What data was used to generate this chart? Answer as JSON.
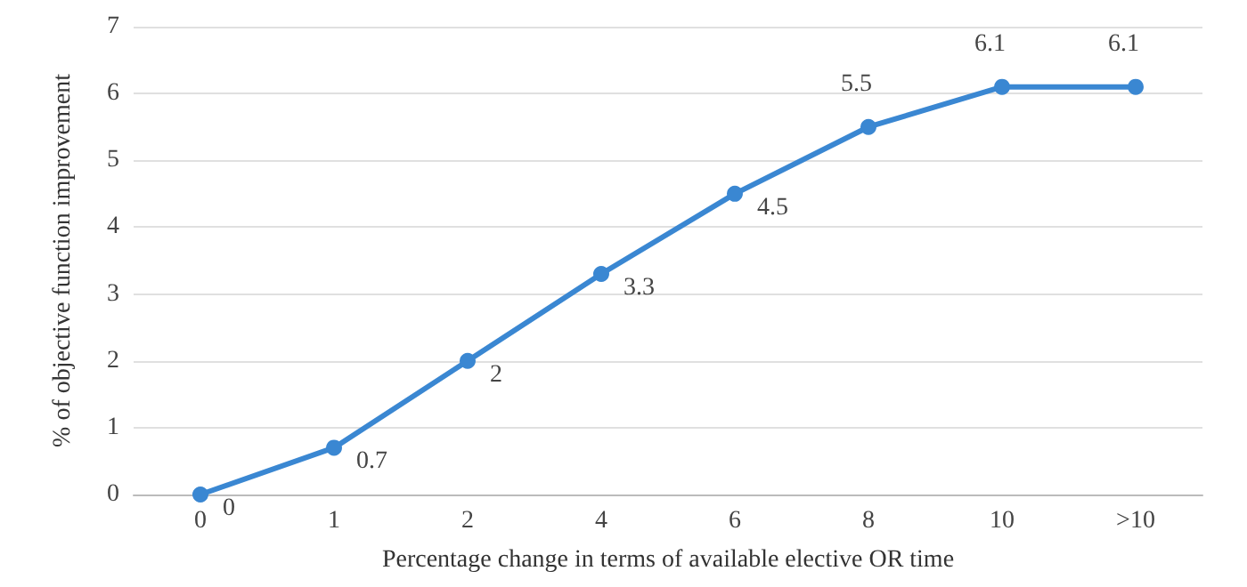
{
  "chart_data": {
    "type": "line",
    "xlabel": "Percentage change in terms of available elective OR time",
    "ylabel": "% of objective function improvement",
    "categories": [
      "0",
      "1",
      "2",
      "4",
      "6",
      "8",
      "10",
      ">10"
    ],
    "series": [
      {
        "color": "#3a87d2",
        "values": [
          0,
          0.7,
          2,
          3.3,
          4.5,
          5.5,
          6.1,
          6.1
        ]
      }
    ],
    "ylim": [
      0,
      7
    ],
    "yticks": [
      0,
      1,
      2,
      3,
      4,
      5,
      6,
      7
    ],
    "grid": "y",
    "marker": "circle",
    "line_style": "solid",
    "data_labels": true
  }
}
